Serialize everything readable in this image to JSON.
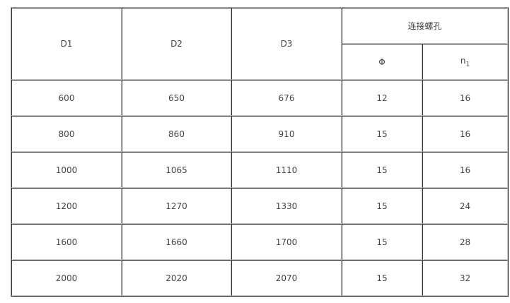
{
  "headers": {
    "d1": "D1",
    "d2": "D2",
    "d3": "D3",
    "bolt_holes": "连接螺孔",
    "phi": "Φ",
    "n": "n",
    "n_sub": "1"
  },
  "rows": [
    [
      "600",
      "650",
      "676",
      "12",
      "16"
    ],
    [
      "800",
      "860",
      "910",
      "15",
      "16"
    ],
    [
      "1000",
      "1065",
      "1110",
      "15",
      "16"
    ],
    [
      "1200",
      "1270",
      "1330",
      "15",
      "24"
    ],
    [
      "1600",
      "1660",
      "1700",
      "15",
      "28"
    ],
    [
      "2000",
      "2020",
      "2070",
      "15",
      "32"
    ]
  ]
}
